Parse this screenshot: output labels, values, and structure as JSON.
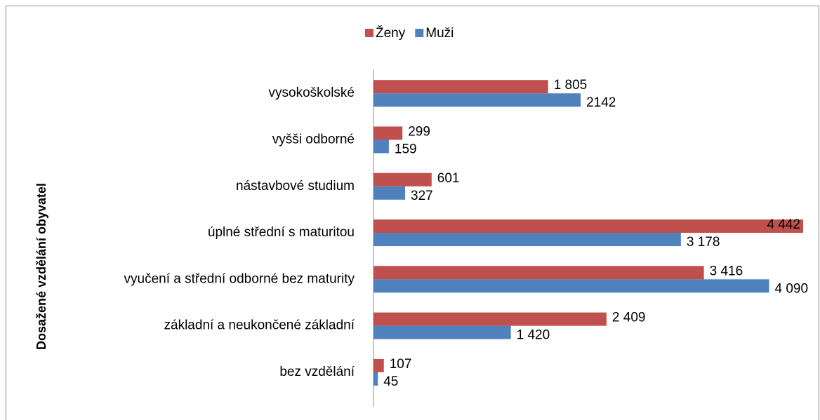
{
  "chart_data": {
    "type": "barh",
    "y_axis_label": "Dosažené vzdělání obyvatel",
    "categories": [
      "vysokoškolské",
      "vyšši odborné ",
      "nástavbové studium",
      "úplné střední s maturitou",
      "vyučení a střední odborné bez maturity",
      "základní a neukončené základní",
      "bez vzdělání"
    ],
    "series": [
      {
        "name": "Ženy",
        "color": "#c0504d",
        "values": [
          1805,
          299,
          601,
          4442,
          3416,
          2409,
          107
        ],
        "value_labels": [
          "1 805",
          "299",
          "601",
          "4 442",
          "3 416",
          "2 409",
          "107"
        ]
      },
      {
        "name": "Muži",
        "color": "#4f81bd",
        "values": [
          2142,
          159,
          327,
          3178,
          4090,
          1420,
          45
        ],
        "value_labels": [
          "2142",
          "159",
          "327",
          "3 178",
          "4 090",
          "1 420",
          "45"
        ]
      }
    ],
    "xlim": [
      0,
      4500
    ],
    "legend": "top"
  }
}
